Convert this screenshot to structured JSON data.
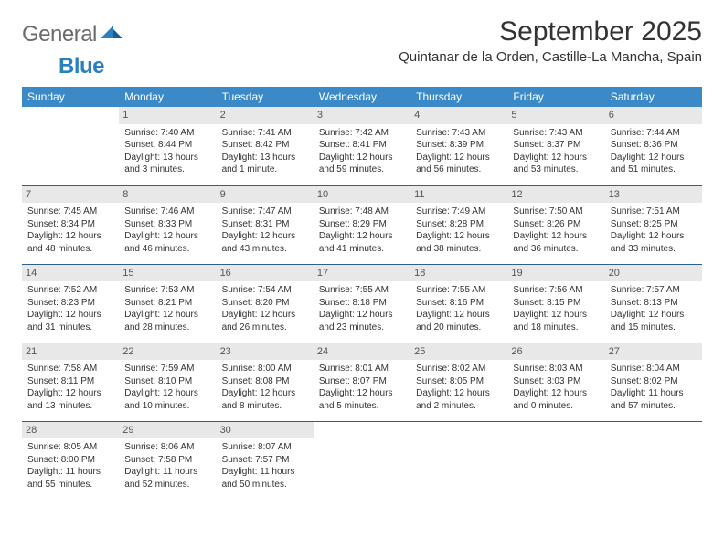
{
  "logo": {
    "text1": "General",
    "text2": "Blue"
  },
  "header": {
    "month_title": "September 2025",
    "location": "Quintanar de la Orden, Castille-La Mancha, Spain"
  },
  "colors": {
    "header_bg": "#3b89c7",
    "header_text": "#ffffff",
    "daynum_bg": "#e8e8e8",
    "daynum_text": "#555555",
    "row_divider": "#2d5f8f",
    "body_text": "#333333",
    "logo_gray": "#6b6b6b",
    "logo_blue": "#2a7fbf"
  },
  "weekdays": [
    "Sunday",
    "Monday",
    "Tuesday",
    "Wednesday",
    "Thursday",
    "Friday",
    "Saturday"
  ],
  "weeks": [
    [
      {
        "day": "",
        "sunrise": "",
        "sunset": "",
        "daylight1": "",
        "daylight2": "",
        "empty": true
      },
      {
        "day": "1",
        "sunrise": "Sunrise: 7:40 AM",
        "sunset": "Sunset: 8:44 PM",
        "daylight1": "Daylight: 13 hours",
        "daylight2": "and 3 minutes."
      },
      {
        "day": "2",
        "sunrise": "Sunrise: 7:41 AM",
        "sunset": "Sunset: 8:42 PM",
        "daylight1": "Daylight: 13 hours",
        "daylight2": "and 1 minute."
      },
      {
        "day": "3",
        "sunrise": "Sunrise: 7:42 AM",
        "sunset": "Sunset: 8:41 PM",
        "daylight1": "Daylight: 12 hours",
        "daylight2": "and 59 minutes."
      },
      {
        "day": "4",
        "sunrise": "Sunrise: 7:43 AM",
        "sunset": "Sunset: 8:39 PM",
        "daylight1": "Daylight: 12 hours",
        "daylight2": "and 56 minutes."
      },
      {
        "day": "5",
        "sunrise": "Sunrise: 7:43 AM",
        "sunset": "Sunset: 8:37 PM",
        "daylight1": "Daylight: 12 hours",
        "daylight2": "and 53 minutes."
      },
      {
        "day": "6",
        "sunrise": "Sunrise: 7:44 AM",
        "sunset": "Sunset: 8:36 PM",
        "daylight1": "Daylight: 12 hours",
        "daylight2": "and 51 minutes."
      }
    ],
    [
      {
        "day": "7",
        "sunrise": "Sunrise: 7:45 AM",
        "sunset": "Sunset: 8:34 PM",
        "daylight1": "Daylight: 12 hours",
        "daylight2": "and 48 minutes."
      },
      {
        "day": "8",
        "sunrise": "Sunrise: 7:46 AM",
        "sunset": "Sunset: 8:33 PM",
        "daylight1": "Daylight: 12 hours",
        "daylight2": "and 46 minutes."
      },
      {
        "day": "9",
        "sunrise": "Sunrise: 7:47 AM",
        "sunset": "Sunset: 8:31 PM",
        "daylight1": "Daylight: 12 hours",
        "daylight2": "and 43 minutes."
      },
      {
        "day": "10",
        "sunrise": "Sunrise: 7:48 AM",
        "sunset": "Sunset: 8:29 PM",
        "daylight1": "Daylight: 12 hours",
        "daylight2": "and 41 minutes."
      },
      {
        "day": "11",
        "sunrise": "Sunrise: 7:49 AM",
        "sunset": "Sunset: 8:28 PM",
        "daylight1": "Daylight: 12 hours",
        "daylight2": "and 38 minutes."
      },
      {
        "day": "12",
        "sunrise": "Sunrise: 7:50 AM",
        "sunset": "Sunset: 8:26 PM",
        "daylight1": "Daylight: 12 hours",
        "daylight2": "and 36 minutes."
      },
      {
        "day": "13",
        "sunrise": "Sunrise: 7:51 AM",
        "sunset": "Sunset: 8:25 PM",
        "daylight1": "Daylight: 12 hours",
        "daylight2": "and 33 minutes."
      }
    ],
    [
      {
        "day": "14",
        "sunrise": "Sunrise: 7:52 AM",
        "sunset": "Sunset: 8:23 PM",
        "daylight1": "Daylight: 12 hours",
        "daylight2": "and 31 minutes."
      },
      {
        "day": "15",
        "sunrise": "Sunrise: 7:53 AM",
        "sunset": "Sunset: 8:21 PM",
        "daylight1": "Daylight: 12 hours",
        "daylight2": "and 28 minutes."
      },
      {
        "day": "16",
        "sunrise": "Sunrise: 7:54 AM",
        "sunset": "Sunset: 8:20 PM",
        "daylight1": "Daylight: 12 hours",
        "daylight2": "and 26 minutes."
      },
      {
        "day": "17",
        "sunrise": "Sunrise: 7:55 AM",
        "sunset": "Sunset: 8:18 PM",
        "daylight1": "Daylight: 12 hours",
        "daylight2": "and 23 minutes."
      },
      {
        "day": "18",
        "sunrise": "Sunrise: 7:55 AM",
        "sunset": "Sunset: 8:16 PM",
        "daylight1": "Daylight: 12 hours",
        "daylight2": "and 20 minutes."
      },
      {
        "day": "19",
        "sunrise": "Sunrise: 7:56 AM",
        "sunset": "Sunset: 8:15 PM",
        "daylight1": "Daylight: 12 hours",
        "daylight2": "and 18 minutes."
      },
      {
        "day": "20",
        "sunrise": "Sunrise: 7:57 AM",
        "sunset": "Sunset: 8:13 PM",
        "daylight1": "Daylight: 12 hours",
        "daylight2": "and 15 minutes."
      }
    ],
    [
      {
        "day": "21",
        "sunrise": "Sunrise: 7:58 AM",
        "sunset": "Sunset: 8:11 PM",
        "daylight1": "Daylight: 12 hours",
        "daylight2": "and 13 minutes."
      },
      {
        "day": "22",
        "sunrise": "Sunrise: 7:59 AM",
        "sunset": "Sunset: 8:10 PM",
        "daylight1": "Daylight: 12 hours",
        "daylight2": "and 10 minutes."
      },
      {
        "day": "23",
        "sunrise": "Sunrise: 8:00 AM",
        "sunset": "Sunset: 8:08 PM",
        "daylight1": "Daylight: 12 hours",
        "daylight2": "and 8 minutes."
      },
      {
        "day": "24",
        "sunrise": "Sunrise: 8:01 AM",
        "sunset": "Sunset: 8:07 PM",
        "daylight1": "Daylight: 12 hours",
        "daylight2": "and 5 minutes."
      },
      {
        "day": "25",
        "sunrise": "Sunrise: 8:02 AM",
        "sunset": "Sunset: 8:05 PM",
        "daylight1": "Daylight: 12 hours",
        "daylight2": "and 2 minutes."
      },
      {
        "day": "26",
        "sunrise": "Sunrise: 8:03 AM",
        "sunset": "Sunset: 8:03 PM",
        "daylight1": "Daylight: 12 hours",
        "daylight2": "and 0 minutes."
      },
      {
        "day": "27",
        "sunrise": "Sunrise: 8:04 AM",
        "sunset": "Sunset: 8:02 PM",
        "daylight1": "Daylight: 11 hours",
        "daylight2": "and 57 minutes."
      }
    ],
    [
      {
        "day": "28",
        "sunrise": "Sunrise: 8:05 AM",
        "sunset": "Sunset: 8:00 PM",
        "daylight1": "Daylight: 11 hours",
        "daylight2": "and 55 minutes."
      },
      {
        "day": "29",
        "sunrise": "Sunrise: 8:06 AM",
        "sunset": "Sunset: 7:58 PM",
        "daylight1": "Daylight: 11 hours",
        "daylight2": "and 52 minutes."
      },
      {
        "day": "30",
        "sunrise": "Sunrise: 8:07 AM",
        "sunset": "Sunset: 7:57 PM",
        "daylight1": "Daylight: 11 hours",
        "daylight2": "and 50 minutes."
      },
      {
        "day": "",
        "sunrise": "",
        "sunset": "",
        "daylight1": "",
        "daylight2": "",
        "empty": true
      },
      {
        "day": "",
        "sunrise": "",
        "sunset": "",
        "daylight1": "",
        "daylight2": "",
        "empty": true
      },
      {
        "day": "",
        "sunrise": "",
        "sunset": "",
        "daylight1": "",
        "daylight2": "",
        "empty": true
      },
      {
        "day": "",
        "sunrise": "",
        "sunset": "",
        "daylight1": "",
        "daylight2": "",
        "empty": true
      }
    ]
  ]
}
